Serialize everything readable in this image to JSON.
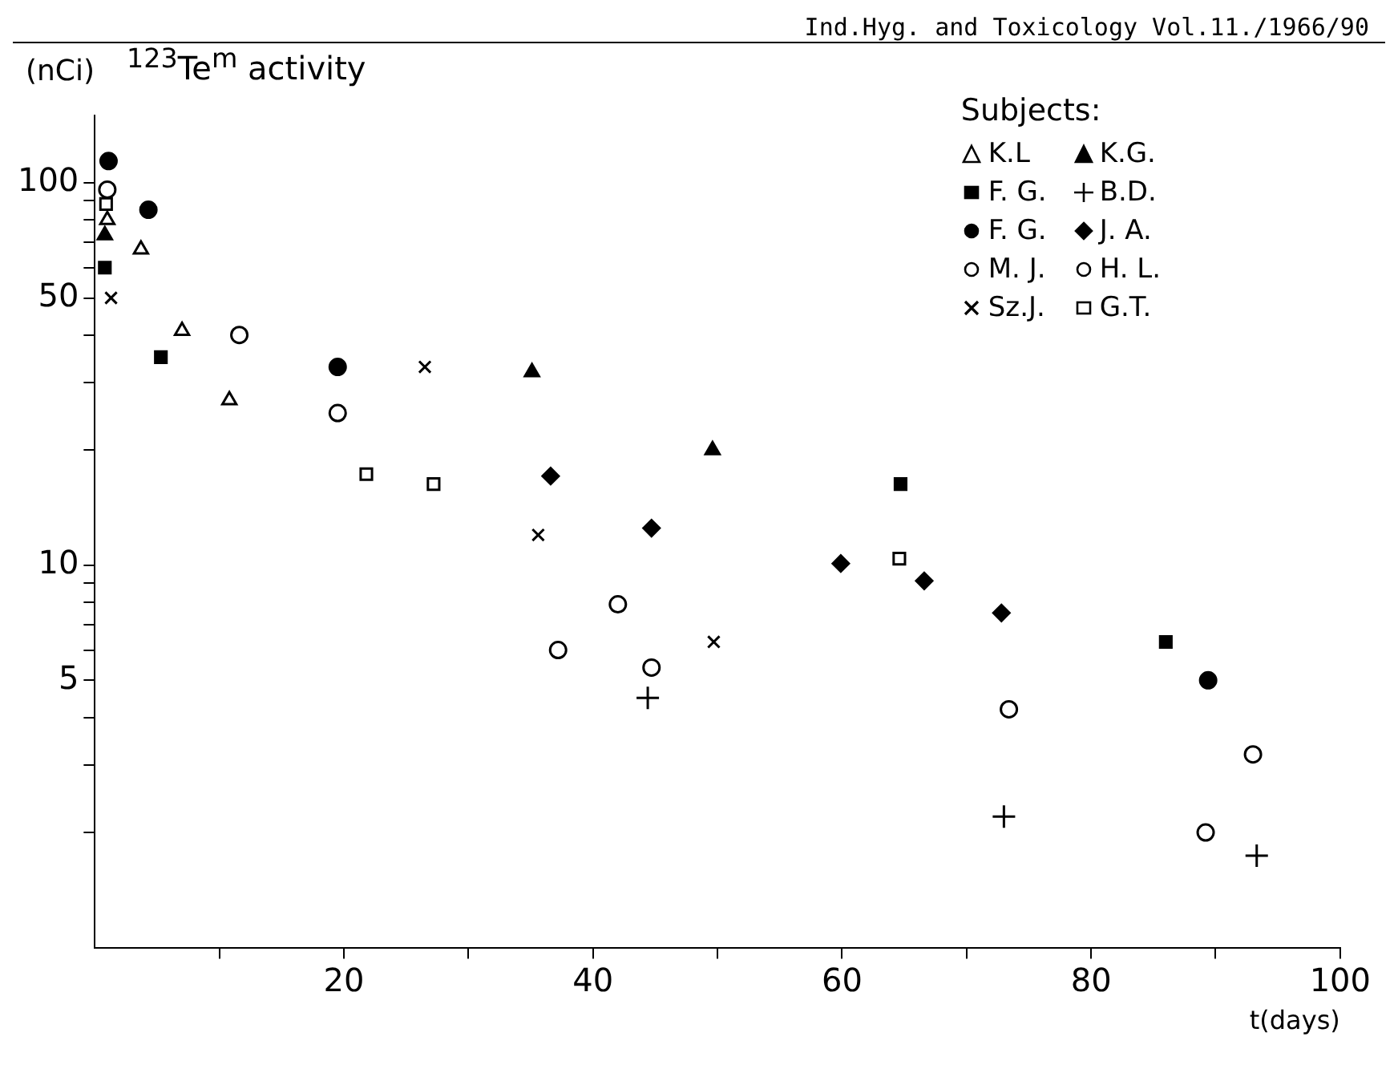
{
  "chart_data": {
    "type": "scatter",
    "title": "$^{123}$Te$^{m}$ activity",
    "ylabel": "(nCi)",
    "xlabel": "t(days)",
    "legend_title": "Subjects:",
    "legend": "top right",
    "grid": false,
    "log": "y",
    "annotations": [
      "Ind.Hyg. and Toxicology Vol.11./1966/90"
    ],
    "xlim": [
      0,
      100
    ],
    "xticks": [
      {
        "value": 10,
        "label": null
      },
      20,
      {
        "value": 30,
        "label": null
      },
      40,
      {
        "value": 50,
        "label": null
      },
      60,
      {
        "value": 70,
        "label": null
      },
      80,
      {
        "value": 90,
        "label": null
      },
      100
    ],
    "ylim": [
      1,
      150
    ],
    "yticks": [
      {
        "value": 2,
        "label": null
      },
      {
        "value": 3,
        "label": null
      },
      {
        "value": 4,
        "label": null
      },
      5,
      {
        "value": 6,
        "label": null
      },
      {
        "value": 7,
        "label": null
      },
      {
        "value": 8,
        "label": null
      },
      {
        "value": 9,
        "label": null
      },
      10,
      {
        "value": 20,
        "label": null
      },
      {
        "value": 30,
        "label": null
      },
      {
        "value": 40,
        "label": null
      },
      50,
      {
        "value": 60,
        "label": null
      },
      {
        "value": 70,
        "label": null
      },
      {
        "value": 80,
        "label": null
      },
      {
        "value": 90,
        "label": null
      },
      100
    ],
    "series": [
      {
        "name": "K.L",
        "color": "#000000",
        "marker": "triangle",
        "x": [
          1,
          3.7,
          7,
          10.8
        ],
        "values": [
          80,
          67,
          41,
          27
        ]
      },
      {
        "name": "K.G.",
        "color": "#000000",
        "marker": "triangle",
        "x": [
          0.8,
          35.1,
          49.6
        ],
        "values": [
          73,
          32,
          20
        ]
      },
      {
        "name": "F. G.",
        "color": "#000000",
        "marker": "square",
        "x": [
          0.8,
          5.3,
          64.7,
          86
        ],
        "values": [
          60,
          35,
          16.3,
          6.3
        ]
      },
      {
        "name": "B.D.",
        "color": "#000000",
        "marker": "plus",
        "x": [
          44.4,
          73,
          93.3
        ],
        "values": [
          4.5,
          2.2,
          1.74
        ]
      },
      {
        "name": "F. G.",
        "color": "#000000",
        "marker": "circle",
        "x": [
          1.1,
          4.3,
          19.5,
          89.4
        ],
        "values": [
          114,
          85,
          33,
          5
        ]
      },
      {
        "name": "J. A.",
        "color": "#000000",
        "marker": "diamond",
        "x": [
          36.6,
          44.7,
          59.9,
          66.6,
          72.8
        ],
        "values": [
          17.1,
          12.5,
          10.1,
          9.1,
          7.5
        ]
      },
      {
        "name": "M. J.",
        "color": "#000000",
        "marker": "circle",
        "x": [
          1,
          11.6,
          19.5,
          42,
          89.2
        ],
        "values": [
          96,
          40,
          25,
          7.9,
          2
        ]
      },
      {
        "name": "H. L.",
        "color": "#000000",
        "marker": "circle",
        "x": [
          37.2,
          44.7,
          73.4,
          93
        ],
        "values": [
          6,
          5.4,
          4.2,
          3.2
        ]
      },
      {
        "name": "Sz.J.",
        "color": "#000000",
        "marker": "cross",
        "x": [
          1.3,
          26.5,
          35.6,
          49.7
        ],
        "values": [
          50,
          33,
          12,
          6.3
        ]
      },
      {
        "name": "G.T.",
        "color": "#000000",
        "marker": "square",
        "x": [
          0.9,
          21.8,
          27.2,
          64.6
        ],
        "values": [
          88,
          17.3,
          16.3,
          10.4
        ]
      }
    ]
  }
}
